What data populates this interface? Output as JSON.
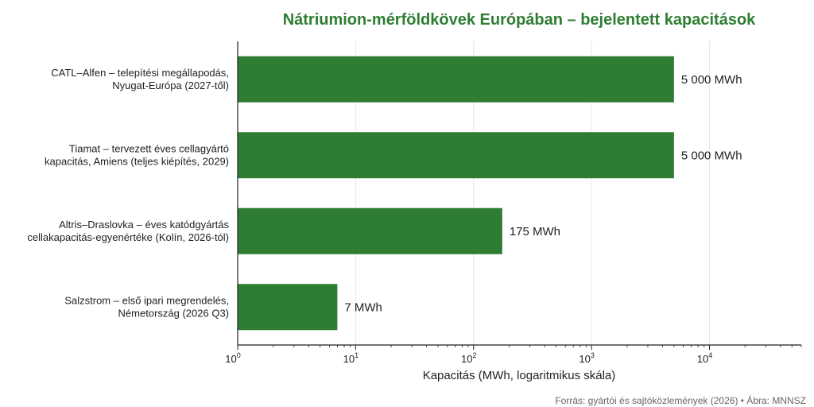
{
  "chart_data": {
    "type": "bar",
    "orientation": "horizontal",
    "title": "Nátriumion-mérföldkövek Európában – bejelentett kapacitások",
    "xlabel": "Kapacitás (MWh, logaritmikus skála)",
    "ylabel": "",
    "x_scale": "log",
    "xlim": [
      1,
      60000
    ],
    "x_ticks": [
      1,
      10,
      100,
      1000,
      10000
    ],
    "x_tick_labels": [
      [
        "10",
        "0"
      ],
      [
        "10",
        "1"
      ],
      [
        "10",
        "2"
      ],
      [
        "10",
        "3"
      ],
      [
        "10",
        "4"
      ]
    ],
    "categories": [
      [
        "CATL–Alfen – telepítési megállapodás,",
        "Nyugat-Európa (2027-től)"
      ],
      [
        "Tiamat – tervezett éves cellagyártó",
        "kapacitás, Amiens (teljes kiépítés, 2029)"
      ],
      [
        "Altris–Draslovka – éves katódgyártás",
        "cellakapacitás-egyenértéke (Kolín, 2026-tól)"
      ],
      [
        "Salzstrom – első ipari megrendelés,",
        "Németország (2026 Q3)"
      ]
    ],
    "values": [
      5000,
      5000,
      175,
      7
    ],
    "value_labels": [
      "5 000 MWh",
      "5 000 MWh",
      "175 MWh",
      "7 MWh"
    ],
    "grid": "vertical",
    "bar_color": "#2e7d32",
    "title_color": "#2e7d32",
    "source": "Forrás: gyártói és sajtóközlemények (2026) • Ábra: MNNSZ"
  }
}
